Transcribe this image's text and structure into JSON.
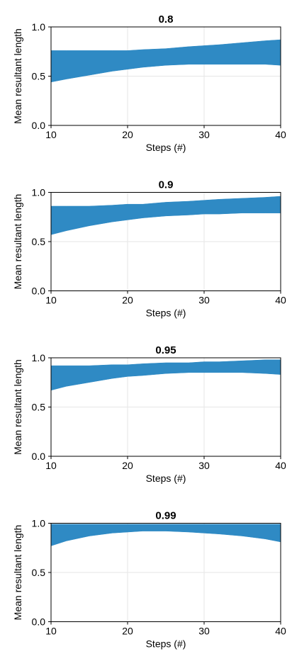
{
  "chart_data": [
    {
      "type": "area",
      "title": "0.8",
      "xlabel": "Steps (#)",
      "ylabel": "Mean resultant length",
      "xlim": [
        10,
        40
      ],
      "ylim": [
        0,
        1
      ],
      "xticks": [
        "10",
        "20",
        "30",
        "40"
      ],
      "yticks": [
        "0.0",
        "0.5",
        "1.0"
      ],
      "grid": true,
      "color": "#2f8ac4",
      "series": [
        {
          "x": [
            10,
            12,
            15,
            18,
            20,
            22,
            25,
            28,
            30,
            32,
            35,
            38,
            40
          ],
          "lower": [
            0.44,
            0.47,
            0.51,
            0.55,
            0.57,
            0.59,
            0.61,
            0.62,
            0.62,
            0.62,
            0.62,
            0.62,
            0.61
          ],
          "upper": [
            0.76,
            0.76,
            0.76,
            0.76,
            0.76,
            0.77,
            0.78,
            0.8,
            0.81,
            0.82,
            0.84,
            0.86,
            0.87
          ]
        }
      ]
    },
    {
      "type": "area",
      "title": "0.9",
      "xlabel": "Steps (#)",
      "ylabel": "Mean resultant length",
      "xlim": [
        10,
        40
      ],
      "ylim": [
        0,
        1
      ],
      "xticks": [
        "10",
        "20",
        "30",
        "40"
      ],
      "yticks": [
        "0.0",
        "0.5",
        "1.0"
      ],
      "grid": true,
      "color": "#2f8ac4",
      "series": [
        {
          "x": [
            10,
            12,
            15,
            18,
            20,
            22,
            25,
            28,
            30,
            32,
            35,
            38,
            40
          ],
          "lower": [
            0.57,
            0.61,
            0.66,
            0.7,
            0.72,
            0.74,
            0.76,
            0.77,
            0.78,
            0.78,
            0.79,
            0.79,
            0.79
          ],
          "upper": [
            0.86,
            0.86,
            0.86,
            0.87,
            0.88,
            0.88,
            0.9,
            0.91,
            0.92,
            0.93,
            0.94,
            0.95,
            0.96
          ]
        }
      ]
    },
    {
      "type": "area",
      "title": "0.95",
      "xlabel": "Steps (#)",
      "ylabel": "Mean resultant length",
      "xlim": [
        10,
        40
      ],
      "ylim": [
        0,
        1
      ],
      "xticks": [
        "10",
        "20",
        "30",
        "40"
      ],
      "yticks": [
        "0.0",
        "0.5",
        "1.0"
      ],
      "grid": true,
      "color": "#2f8ac4",
      "series": [
        {
          "x": [
            10,
            12,
            15,
            18,
            20,
            22,
            25,
            28,
            30,
            32,
            35,
            38,
            40
          ],
          "lower": [
            0.67,
            0.71,
            0.75,
            0.79,
            0.81,
            0.82,
            0.84,
            0.85,
            0.85,
            0.85,
            0.85,
            0.84,
            0.83
          ],
          "upper": [
            0.92,
            0.92,
            0.92,
            0.93,
            0.93,
            0.94,
            0.95,
            0.95,
            0.96,
            0.96,
            0.97,
            0.98,
            0.98
          ]
        }
      ]
    },
    {
      "type": "area",
      "title": "0.99",
      "xlabel": "Steps (#)",
      "ylabel": "Mean resultant length",
      "xlim": [
        10,
        40
      ],
      "ylim": [
        0,
        1
      ],
      "xticks": [
        "10",
        "20",
        "30",
        "40"
      ],
      "yticks": [
        "0.0",
        "0.5",
        "1.0"
      ],
      "grid": true,
      "color": "#2f8ac4",
      "series": [
        {
          "x": [
            10,
            12,
            15,
            18,
            20,
            22,
            25,
            28,
            30,
            32,
            35,
            38,
            40
          ],
          "lower": [
            0.77,
            0.82,
            0.87,
            0.9,
            0.91,
            0.92,
            0.92,
            0.91,
            0.9,
            0.89,
            0.87,
            0.84,
            0.81
          ],
          "upper": [
            0.99,
            0.99,
            0.99,
            0.99,
            0.99,
            0.99,
            0.99,
            0.99,
            0.99,
            0.99,
            0.99,
            0.99,
            0.99
          ]
        }
      ]
    }
  ]
}
